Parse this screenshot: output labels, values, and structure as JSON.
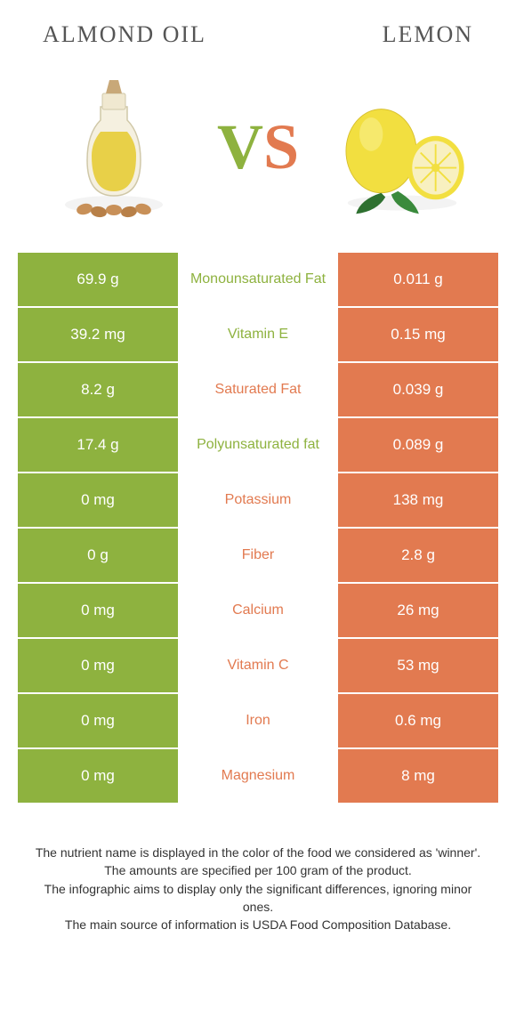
{
  "titles": {
    "left": "ALMOND OIL",
    "right": "LEMON"
  },
  "vs": {
    "v": "V",
    "s": "S"
  },
  "colors": {
    "left": "#8eb23f",
    "right": "#e27a50",
    "mid_bg": "#ffffff",
    "title": "#555555"
  },
  "rows": [
    {
      "left": "69.9 g",
      "label": "Monounsaturated Fat",
      "right": "0.011 g",
      "winner": "left"
    },
    {
      "left": "39.2 mg",
      "label": "Vitamin E",
      "right": "0.15 mg",
      "winner": "left"
    },
    {
      "left": "8.2 g",
      "label": "Saturated Fat",
      "right": "0.039 g",
      "winner": "right"
    },
    {
      "left": "17.4 g",
      "label": "Polyunsaturated fat",
      "right": "0.089 g",
      "winner": "left"
    },
    {
      "left": "0 mg",
      "label": "Potassium",
      "right": "138 mg",
      "winner": "right"
    },
    {
      "left": "0 g",
      "label": "Fiber",
      "right": "2.8 g",
      "winner": "right"
    },
    {
      "left": "0 mg",
      "label": "Calcium",
      "right": "26 mg",
      "winner": "right"
    },
    {
      "left": "0 mg",
      "label": "Vitamin C",
      "right": "53 mg",
      "winner": "right"
    },
    {
      "left": "0 mg",
      "label": "Iron",
      "right": "0.6 mg",
      "winner": "right"
    },
    {
      "left": "0 mg",
      "label": "Magnesium",
      "right": "8 mg",
      "winner": "right"
    }
  ],
  "footer": [
    "The nutrient name is displayed in the color of the food we considered as 'winner'.",
    "The amounts are specified per 100 gram of the product.",
    "The infographic aims to display only the significant differences, ignoring minor ones.",
    "The main source of information is USDA Food Composition Database."
  ]
}
